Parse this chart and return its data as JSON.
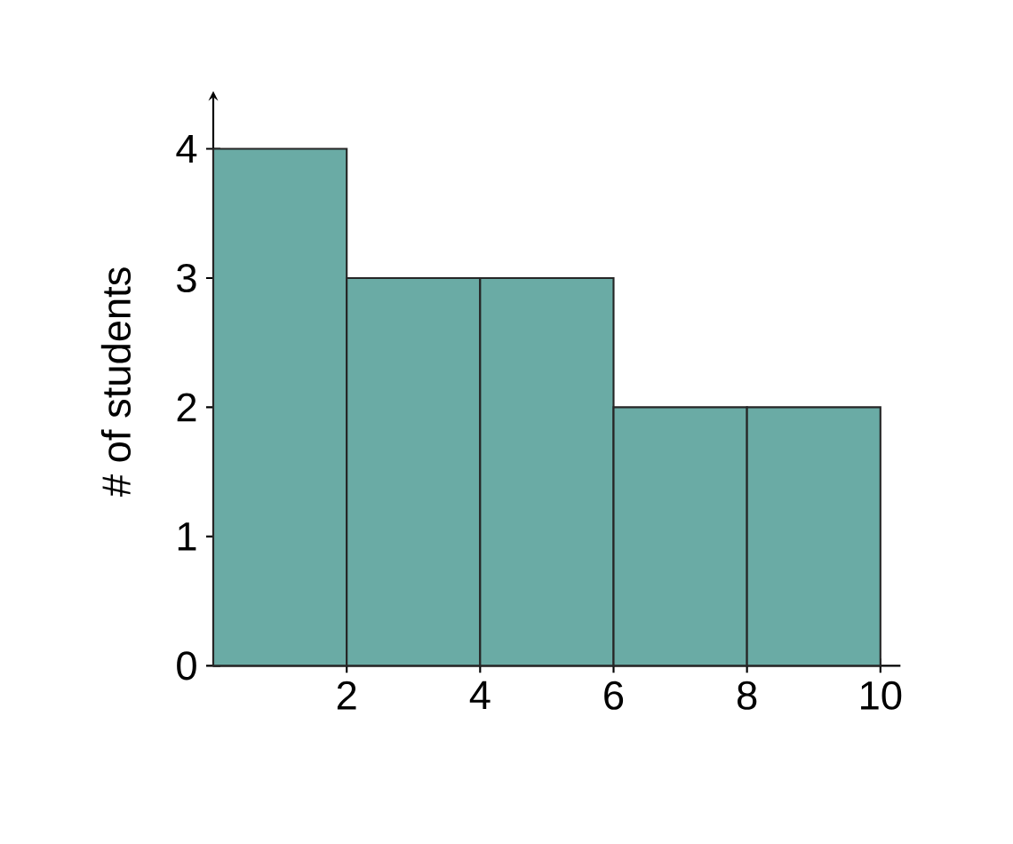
{
  "chart_data": {
    "type": "histogram",
    "ylabel": "# of students",
    "bins": [
      0,
      2,
      4,
      6,
      8,
      10
    ],
    "values": [
      4,
      3,
      3,
      2,
      2
    ],
    "color": "#6aaba5",
    "xlim": [
      0,
      10.3
    ],
    "ylim": [
      0,
      4.4
    ],
    "xticks": [
      2,
      4,
      6,
      8,
      10
    ],
    "yticks": [
      0,
      1,
      2,
      3,
      4
    ],
    "grid": false
  }
}
